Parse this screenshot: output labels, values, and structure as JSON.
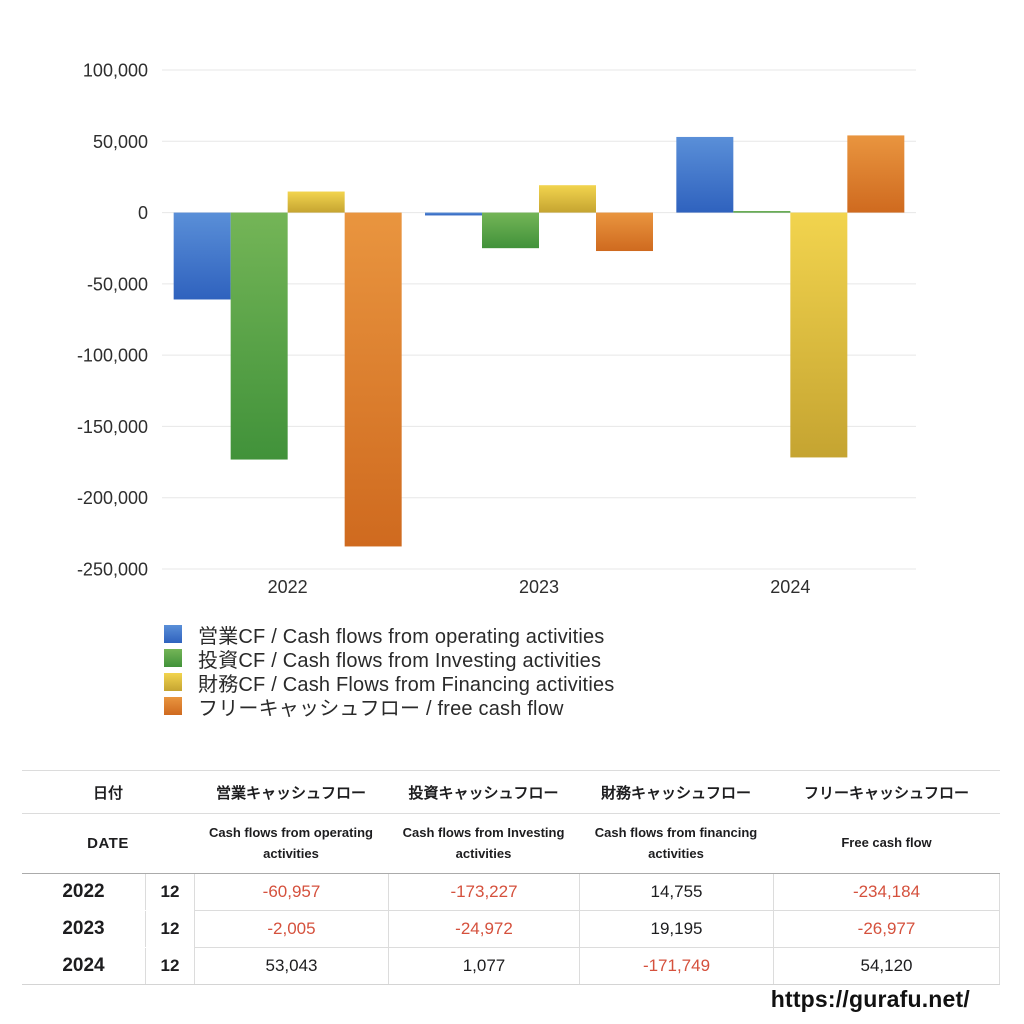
{
  "page": {
    "footer_url": "https://gurafu.net/"
  },
  "chart_data": {
    "type": "bar",
    "title": "",
    "categories": [
      "2022",
      "2023",
      "2024"
    ],
    "series": [
      {
        "name": "営業CF / Cash flows from operating activities",
        "color_top": "#5a8fd8",
        "color_bottom": "#2f62be",
        "values": [
          -60957,
          -2005,
          53043
        ]
      },
      {
        "name": "投資CF / Cash flows from Investing activities",
        "color_top": "#74b557",
        "color_bottom": "#41923a",
        "values": [
          -173227,
          -24972,
          1077
        ]
      },
      {
        "name": "財務CF / Cash Flows from Financing activities",
        "color_top": "#f2d44e",
        "color_bottom": "#c5a431",
        "values": [
          14755,
          19195,
          -171749
        ]
      },
      {
        "name": "フリーキャッシュフロー / free cash flow",
        "color_top": "#e9953f",
        "color_bottom": "#cf6a1f",
        "values": [
          -234184,
          -26977,
          54120
        ]
      }
    ],
    "xlabel": "",
    "ylabel": "",
    "ylim": [
      -250000,
      100000
    ],
    "ytick_values": [
      100000,
      50000,
      0,
      -50000,
      -100000,
      -150000,
      -200000,
      -250000
    ],
    "ytick_labels": [
      "100,000",
      "50,000",
      "0",
      "-50,000",
      "-100,000",
      "-150,000",
      "-200,000",
      "-250,000"
    ],
    "grid": true,
    "legend_position": "bottom-left"
  },
  "table": {
    "headers_jp": {
      "date": "日付",
      "operating": "営業キャッシュフロー",
      "investing": "投資キャッシュフロー",
      "financing": "財務キャッシュフロー",
      "free": "フリーキャッシュフロー"
    },
    "headers_en": {
      "date": "DATE",
      "operating": "Cash flows from operating activities",
      "investing": "Cash flows from Investing activities",
      "financing": "Cash flows from financing activities",
      "free": "Free cash flow"
    },
    "rows": [
      {
        "year": "2022",
        "month": "12",
        "operating": "-60,957",
        "investing": "-173,227",
        "financing": "14,755",
        "free": "-234,184"
      },
      {
        "year": "2023",
        "month": "12",
        "operating": "-2,005",
        "investing": "-24,972",
        "financing": "19,195",
        "free": "-26,977"
      },
      {
        "year": "2024",
        "month": "12",
        "operating": "53,043",
        "investing": "1,077",
        "financing": "-171,749",
        "free": "54,120"
      }
    ],
    "negative_color": "#d5513d"
  }
}
